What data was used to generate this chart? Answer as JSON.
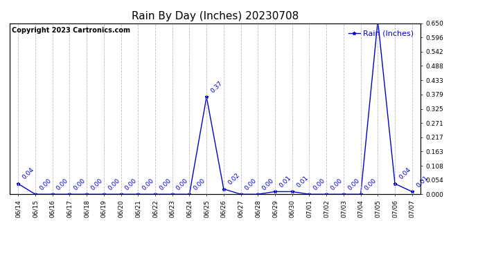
{
  "title": "Rain By Day (Inches) 20230708",
  "copyright_text": "Copyright 2023 Cartronics.com",
  "legend_label": "Rain (Inches)",
  "line_color": "#0000cc",
  "background_color": "#ffffff",
  "grid_color": "#bbbbbb",
  "ylim": [
    0.0,
    0.65
  ],
  "yticks": [
    0.0,
    0.054,
    0.108,
    0.163,
    0.217,
    0.271,
    0.325,
    0.379,
    0.433,
    0.488,
    0.542,
    0.596,
    0.65
  ],
  "dates": [
    "06/14",
    "06/15",
    "06/16",
    "06/17",
    "06/18",
    "06/19",
    "06/20",
    "06/21",
    "06/22",
    "06/23",
    "06/24",
    "06/25",
    "06/26",
    "06/27",
    "06/28",
    "06/29",
    "06/30",
    "07/01",
    "07/02",
    "07/03",
    "07/04",
    "07/05",
    "07/06",
    "07/07"
  ],
  "values": [
    0.04,
    0.0,
    0.0,
    0.0,
    0.0,
    0.0,
    0.0,
    0.0,
    0.0,
    0.0,
    0.0,
    0.37,
    0.02,
    0.0,
    0.0,
    0.01,
    0.01,
    0.0,
    0.0,
    0.0,
    0.0,
    0.66,
    0.04,
    0.01
  ],
  "annotation_color": "#0000cc",
  "title_fontsize": 11,
  "tick_fontsize": 6.5,
  "annotation_fontsize": 6.5,
  "copyright_fontsize": 7,
  "legend_fontsize": 8
}
